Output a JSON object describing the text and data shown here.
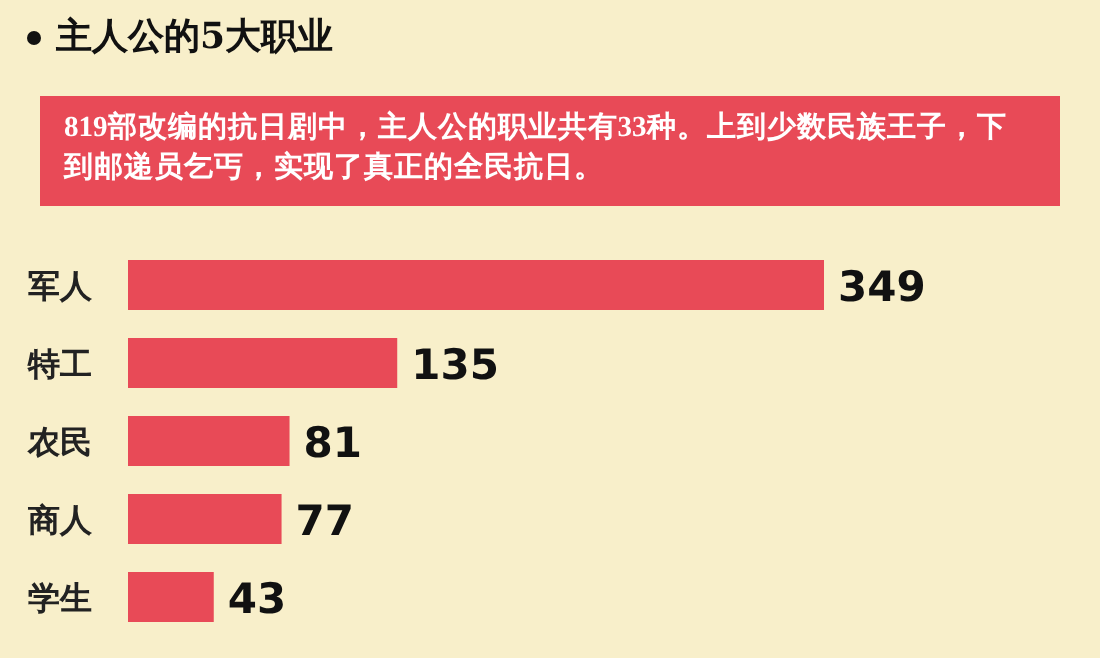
{
  "chart_data": {
    "type": "bar",
    "orientation": "horizontal",
    "title": "主人公的5大职业",
    "subtitle": "819部改编的抗日剧中，主人公的职业共有33种。上到少数民族王子，下到邮递员乞丐，实现了真正的全民抗日。",
    "categories": [
      "军人",
      "特工",
      "农民",
      "商人",
      "学生"
    ],
    "values": [
      349,
      135,
      81,
      77,
      43
    ],
    "color": "#e84a57",
    "data_labels": true
  }
}
